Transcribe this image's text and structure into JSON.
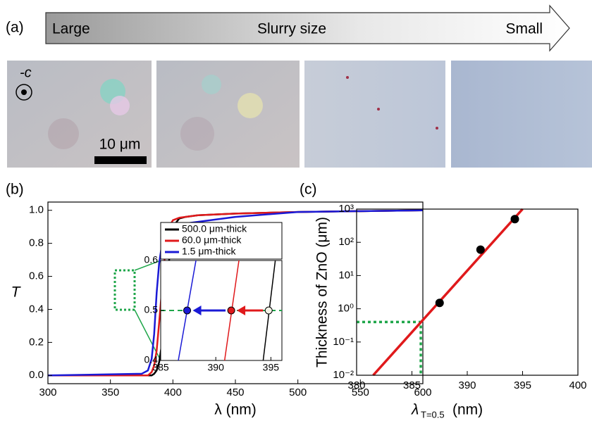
{
  "panel_a": {
    "label": "(a)",
    "arrow_left": "Large",
    "arrow_center": "Slurry size",
    "arrow_right": "Small",
    "axis_symbol": "-c",
    "scale_bar": "10 μm"
  },
  "chart_data": [
    {
      "type": "line",
      "label": "(b)",
      "x_label": "λ (nm)",
      "y_label": "T",
      "x": [
        300,
        375,
        380,
        383,
        385,
        387,
        389,
        391,
        393,
        395,
        397,
        400,
        405,
        410,
        420,
        450,
        500,
        600
      ],
      "series": [
        {
          "name": "500.0 μm-thick",
          "color": "#000000",
          "values": [
            0,
            0,
            0,
            0,
            0.01,
            0.03,
            0.08,
            0.18,
            0.33,
            0.5,
            0.7,
            0.9,
            0.95,
            0.96,
            0.97,
            0.98,
            0.99,
            1.0
          ]
        },
        {
          "name": "60.0 μm-thick",
          "color": "#e0191b",
          "values": [
            0,
            0,
            0,
            0.02,
            0.06,
            0.15,
            0.32,
            0.5,
            0.68,
            0.82,
            0.9,
            0.94,
            0.955,
            0.96,
            0.97,
            0.98,
            0.99,
            1.0
          ]
        },
        {
          "name": "1.5 μm-thick",
          "color": "#1a1ad6",
          "values": [
            0,
            0.01,
            0.03,
            0.1,
            0.25,
            0.5,
            0.68,
            0.78,
            0.83,
            0.86,
            0.88,
            0.9,
            0.91,
            0.92,
            0.93,
            0.96,
            0.99,
            1.0
          ]
        }
      ],
      "xlim": [
        300,
        600
      ],
      "xticks": [
        300,
        350,
        400,
        450,
        500,
        550,
        600
      ],
      "ylim": [
        -0.05,
        1.05
      ],
      "yticks": [
        {
          "value": 0,
          "label": "0.0"
        },
        {
          "value": 0.2,
          "label": "0.2"
        },
        {
          "value": 0.4,
          "label": "0.4"
        },
        {
          "value": 0.6,
          "label": "0.6"
        },
        {
          "value": 0.8,
          "label": "0.8"
        },
        {
          "value": 1,
          "label": "1.0"
        }
      ]
    },
    {
      "type": "line",
      "series": [
        {
          "color": "#1a1ad6",
          "x": [
            386.6,
            388.2
          ],
          "values": [
            0.4,
            0.6
          ]
        },
        {
          "color": "#e0191b",
          "x": [
            390.8,
            392.1
          ],
          "values": [
            0.4,
            0.6
          ]
        },
        {
          "color": "#000000",
          "x": [
            394.3,
            395.4
          ],
          "values": [
            0.4,
            0.6
          ]
        }
      ],
      "points": {
        "x": [
          387.4,
          391.4,
          394.8
        ],
        "values": [
          0.5,
          0.5,
          0.5
        ],
        "colors": [
          "#1a1ad6",
          "#e0191b",
          "#f2f2e6"
        ]
      },
      "xlim": [
        385,
        396
      ],
      "xticks": [
        385,
        390,
        395
      ],
      "ylim": [
        0.4,
        0.6
      ],
      "yticks": [
        0.4,
        0.5,
        0.6
      ]
    },
    {
      "type": "scatter",
      "label": "(c)",
      "y_label": "Thickness of ZnO (μm)",
      "x_label": "λ",
      "x_label_sub": "T=0.5",
      "x_label_unit": "(nm)",
      "x": [
        387.5,
        391.2,
        394.3
      ],
      "values": [
        1.5,
        60,
        500
      ],
      "color": "#000000",
      "fit": {
        "x": [
          381.5,
          395
        ],
        "values": [
          0.01,
          1000
        ],
        "color": "#e0191b"
      },
      "guide": {
        "x": 385.8,
        "y": 0.4,
        "color": "#1fa64a"
      },
      "xlim": [
        380,
        400
      ],
      "xticks": [
        380,
        385,
        390,
        395,
        400
      ],
      "ylim": [
        0.01,
        1000
      ],
      "log_y": true,
      "yticks": [
        {
          "value": 0.01,
          "label": "10⁻²"
        },
        {
          "value": 0.1,
          "label": "10⁻¹"
        },
        {
          "value": 1,
          "label": "10⁰"
        },
        {
          "value": 10,
          "label": "10¹"
        },
        {
          "value": 100,
          "label": "10²"
        },
        {
          "value": 1000,
          "label": "10³"
        }
      ]
    }
  ]
}
